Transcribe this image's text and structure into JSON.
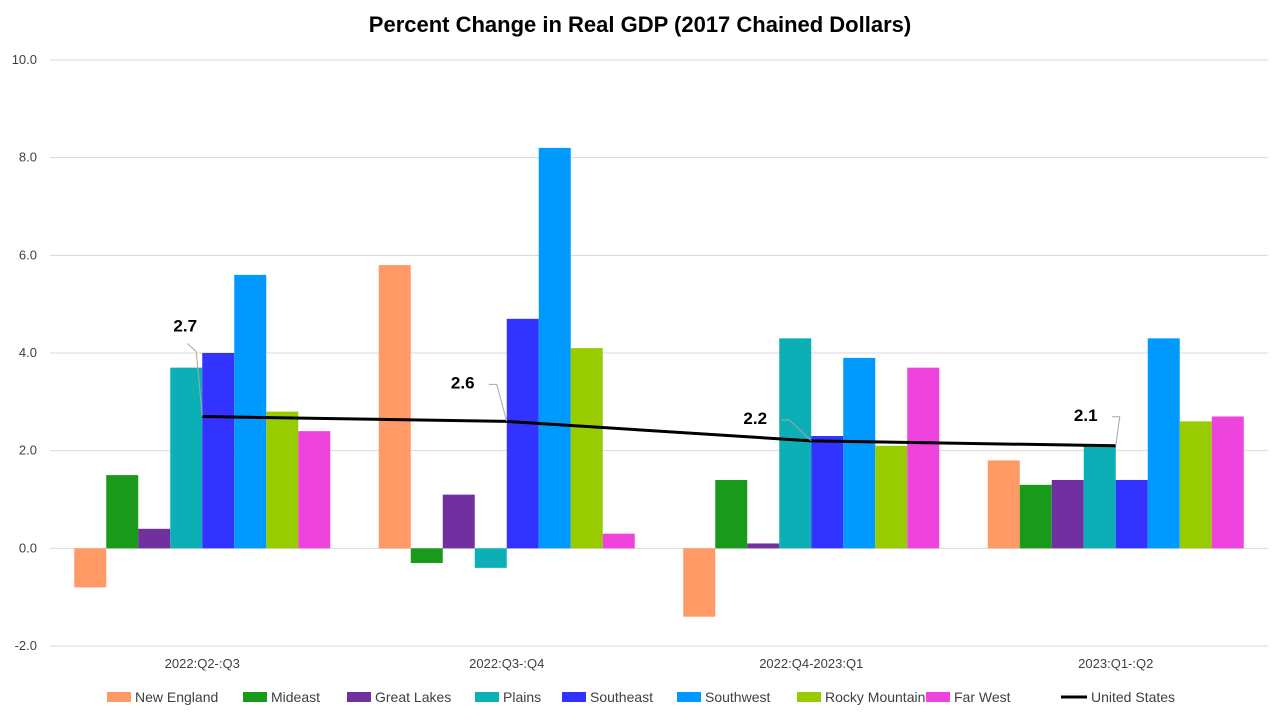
{
  "chart_data": {
    "type": "bar",
    "title": "Percent Change in Real GDP (2017 Chained Dollars)",
    "categories": [
      "2022:Q2-:Q3",
      "2022:Q3-:Q4",
      "2022:Q4-2023:Q1",
      "2023:Q1-:Q2"
    ],
    "ylim": [
      -2.0,
      10.0
    ],
    "yticks": [
      "-2.0",
      "0.0",
      "2.0",
      "4.0",
      "6.0",
      "8.0",
      "10.0"
    ],
    "grid": true,
    "legend_position": "bottom",
    "series": [
      {
        "name": "New England",
        "color": "#FF9966",
        "values": [
          -0.8,
          5.8,
          -1.4,
          1.8
        ]
      },
      {
        "name": "Mideast",
        "color": "#1A9A1A",
        "values": [
          1.5,
          -0.3,
          1.4,
          1.3
        ]
      },
      {
        "name": "Great Lakes",
        "color": "#7030A0",
        "values": [
          0.4,
          1.1,
          0.1,
          1.4
        ]
      },
      {
        "name": "Plains",
        "color": "#0BAFB5",
        "values": [
          3.7,
          -0.4,
          4.3,
          2.1
        ]
      },
      {
        "name": "Southeast",
        "color": "#3333FF",
        "values": [
          4.0,
          4.7,
          2.3,
          1.4
        ]
      },
      {
        "name": "Southwest",
        "color": "#0099FF",
        "values": [
          5.6,
          8.2,
          3.9,
          4.3
        ]
      },
      {
        "name": "Rocky Mountain",
        "color": "#99CC00",
        "values": [
          2.8,
          4.1,
          2.1,
          2.6
        ]
      },
      {
        "name": "Far West",
        "color": "#EE44DD",
        "values": [
          2.4,
          0.3,
          3.7,
          2.7
        ]
      }
    ],
    "line_series": {
      "name": "United States",
      "color": "#000000",
      "values": [
        2.7,
        2.6,
        2.2,
        2.1
      ],
      "labels": [
        "2.7",
        "2.6",
        "2.2",
        "2.1"
      ]
    }
  }
}
